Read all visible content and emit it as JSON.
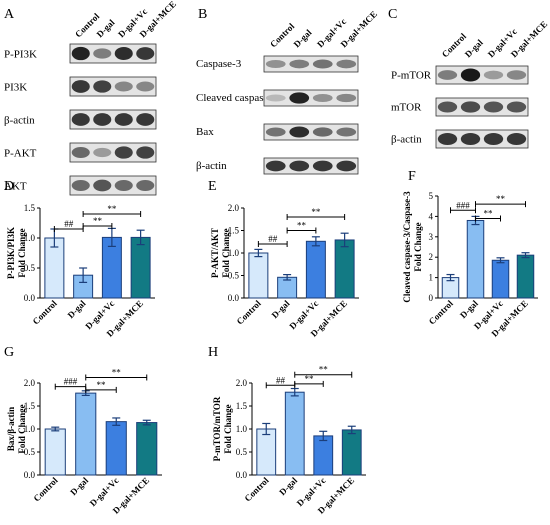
{
  "blots": [
    {
      "letter": "A",
      "lanes": [
        "Control",
        "D-gal",
        "D-gal+Vc",
        "D-gal+MCE"
      ],
      "rows": [
        {
          "label": "P-PI3K",
          "bands": [
            0.95,
            0.5,
            0.9,
            0.85
          ]
        },
        {
          "label": "PI3K",
          "bands": [
            0.85,
            0.8,
            0.45,
            0.45
          ]
        },
        {
          "label": "β-actin",
          "bands": [
            0.85,
            0.85,
            0.85,
            0.85
          ]
        },
        {
          "label": "P-AKT",
          "bands": [
            0.6,
            0.35,
            0.8,
            0.8
          ]
        },
        {
          "label": "AKT",
          "bands": [
            0.6,
            0.7,
            0.6,
            0.6
          ]
        }
      ]
    },
    {
      "letter": "B",
      "lanes": [
        "Control",
        "D-gal",
        "D-gal+Vc",
        "D-gal+MCE"
      ],
      "rows": [
        {
          "label": "Caspase-3",
          "bands": [
            0.4,
            0.5,
            0.55,
            0.5
          ]
        },
        {
          "label": "Cleaved caspase-3",
          "bands": [
            0.2,
            0.95,
            0.4,
            0.45
          ]
        },
        {
          "label": "Bax",
          "bands": [
            0.55,
            0.9,
            0.6,
            0.55
          ]
        },
        {
          "label": "β-actin",
          "bands": [
            0.85,
            0.85,
            0.85,
            0.85
          ]
        }
      ]
    },
    {
      "letter": "C",
      "lanes": [
        "Control",
        "D-gal",
        "D-gal+Vc",
        "D-gal+MCE"
      ],
      "rows": [
        {
          "label": "P-mTOR",
          "bands": [
            0.5,
            1.0,
            0.35,
            0.45
          ]
        },
        {
          "label": "mTOR",
          "bands": [
            0.7,
            0.75,
            0.7,
            0.7
          ]
        },
        {
          "label": "β-actin",
          "bands": [
            0.85,
            0.85,
            0.85,
            0.85
          ]
        }
      ]
    }
  ],
  "chart_data": [
    {
      "letter": "D",
      "type": "bar",
      "ylabel": [
        "P-PI3K/PI3K",
        "Fold Change"
      ],
      "categories": [
        "Control",
        "D-gal",
        "D-gal+Vc",
        "D-gal+MCE"
      ],
      "values": [
        1.0,
        0.38,
        1.01,
        1.01
      ],
      "errors": [
        0.15,
        0.12,
        0.15,
        0.12
      ],
      "ylim": [
        0,
        1.5
      ],
      "yticks": [
        0.0,
        0.5,
        1.0,
        1.5
      ],
      "colors": [
        "#d6e9fb",
        "#88bdf2",
        "#3c7fe0",
        "#127a84"
      ],
      "brackets": [
        {
          "from": 0,
          "to": 1,
          "label": "##",
          "level": 1.15
        },
        {
          "from": 1,
          "to": 2,
          "label": "**",
          "level": 1.2
        },
        {
          "from": 1,
          "to": 3,
          "label": "**",
          "level": 1.4
        }
      ]
    },
    {
      "letter": "E",
      "type": "bar",
      "ylabel": [
        "P-AKT/AKT",
        "Fold Change"
      ],
      "categories": [
        "Control",
        "D-gal",
        "D-gal+Vc",
        "D-gal+MCE"
      ],
      "values": [
        1.0,
        0.46,
        1.26,
        1.29
      ],
      "errors": [
        0.08,
        0.06,
        0.1,
        0.15
      ],
      "ylim": [
        0,
        2.0
      ],
      "yticks": [
        0.0,
        0.5,
        1.0,
        1.5,
        2.0
      ],
      "colors": [
        "#d6e9fb",
        "#88bdf2",
        "#3c7fe0",
        "#127a84"
      ],
      "brackets": [
        {
          "from": 0,
          "to": 1,
          "label": "##",
          "level": 1.2
        },
        {
          "from": 1,
          "to": 2,
          "label": "**",
          "level": 1.5
        },
        {
          "from": 1,
          "to": 3,
          "label": "**",
          "level": 1.8
        }
      ]
    },
    {
      "letter": "F",
      "type": "bar",
      "ylabel": [
        "Cleaved caspase-3/Caspase-3",
        "Fold Change"
      ],
      "categories": [
        "Control",
        "D-gal",
        "D-gal+Vc",
        "D-gal+MCE"
      ],
      "values": [
        1.0,
        3.8,
        1.85,
        2.1
      ],
      "errors": [
        0.15,
        0.2,
        0.12,
        0.12
      ],
      "ylim": [
        0,
        5
      ],
      "yticks": [
        0,
        1,
        2,
        3,
        4,
        5
      ],
      "colors": [
        "#d6e9fb",
        "#88bdf2",
        "#3c7fe0",
        "#127a84"
      ],
      "brackets": [
        {
          "from": 0,
          "to": 1,
          "label": "###",
          "level": 4.3
        },
        {
          "from": 1,
          "to": 2,
          "label": "**",
          "level": 3.9
        },
        {
          "from": 1,
          "to": 3,
          "label": "**",
          "level": 4.6
        }
      ]
    },
    {
      "letter": "G",
      "type": "bar",
      "ylabel": [
        "Bax/β-actin",
        "Fold Change"
      ],
      "categories": [
        "Control",
        "D-gal",
        "D-gal+Vc",
        "D-gal+MCE"
      ],
      "values": [
        1.0,
        1.78,
        1.16,
        1.14
      ],
      "errors": [
        0.04,
        0.05,
        0.08,
        0.05
      ],
      "ylim": [
        0,
        2.0
      ],
      "yticks": [
        0.0,
        0.5,
        1.0,
        1.5,
        2.0
      ],
      "colors": [
        "#d6e9fb",
        "#88bdf2",
        "#3c7fe0",
        "#127a84"
      ],
      "brackets": [
        {
          "from": 0,
          "to": 1,
          "label": "###",
          "level": 1.92
        },
        {
          "from": 1,
          "to": 2,
          "label": "**",
          "level": 1.85
        },
        {
          "from": 1,
          "to": 3,
          "label": "**",
          "level": 2.12
        }
      ]
    },
    {
      "letter": "H",
      "type": "bar",
      "ylabel": [
        "P-mTOR/mTOR",
        "Fold Change"
      ],
      "categories": [
        "Control",
        "D-gal",
        "D-gal+Vc",
        "D-gal+MCE"
      ],
      "values": [
        1.0,
        1.8,
        0.85,
        0.98
      ],
      "errors": [
        0.12,
        0.08,
        0.1,
        0.08
      ],
      "ylim": [
        0,
        2.0
      ],
      "yticks": [
        0.0,
        0.5,
        1.0,
        1.5,
        2.0
      ],
      "colors": [
        "#d6e9fb",
        "#88bdf2",
        "#3c7fe0",
        "#127a84"
      ],
      "brackets": [
        {
          "from": 0,
          "to": 1,
          "label": "##",
          "level": 1.95
        },
        {
          "from": 1,
          "to": 2,
          "label": "**",
          "level": 1.98
        },
        {
          "from": 1,
          "to": 3,
          "label": "**",
          "level": 2.18
        }
      ]
    }
  ]
}
